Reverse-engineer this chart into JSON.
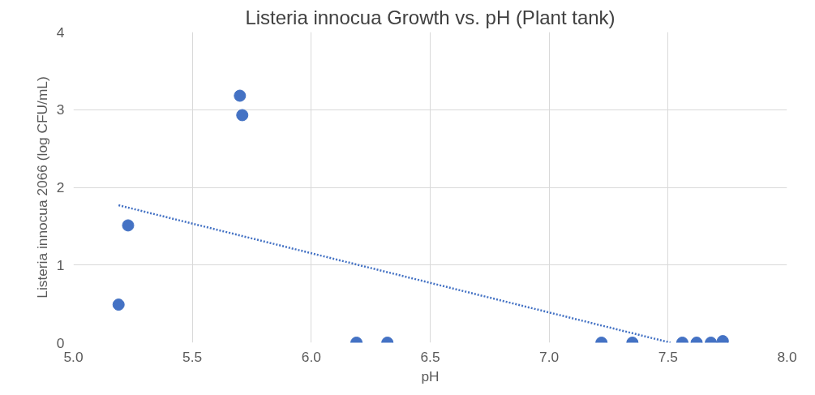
{
  "chart_data": {
    "type": "scatter",
    "title": "Listeria innocua Growth vs. pH (Plant tank)",
    "xlabel": "pH",
    "ylabel": "Listeria innocua 2066 (log CFU/mL)",
    "xlim": [
      5.0,
      8.0
    ],
    "xticks": [
      {
        "value": 5.0,
        "label": "5.0"
      },
      {
        "value": 5.5,
        "label": "5.5"
      },
      {
        "value": 6.0,
        "label": "6.0"
      },
      {
        "value": 6.5,
        "label": "6.5"
      },
      {
        "value": 7.0,
        "label": "7.0"
      },
      {
        "value": 7.5,
        "label": "7.5"
      },
      {
        "value": 8.0,
        "label": "8.0"
      }
    ],
    "ylim": [
      0,
      4
    ],
    "yticks": [
      0,
      1,
      2,
      3,
      4
    ],
    "grid": true,
    "series": [
      {
        "marker": "circle",
        "color": "#4472c4",
        "x": [
          5.19,
          5.23,
          5.7,
          5.71,
          6.19,
          6.32,
          7.22,
          7.35,
          7.56,
          7.62,
          7.68,
          7.73
        ],
        "values": [
          0.49,
          1.51,
          3.18,
          2.93,
          0,
          0,
          0,
          0,
          0,
          0,
          0,
          0.02
        ]
      },
      {
        "type": "line",
        "line_style": "dotted",
        "color": "#4472c4",
        "x": [
          5.19,
          7.51
        ],
        "values": [
          1.77,
          0
        ]
      }
    ]
  }
}
